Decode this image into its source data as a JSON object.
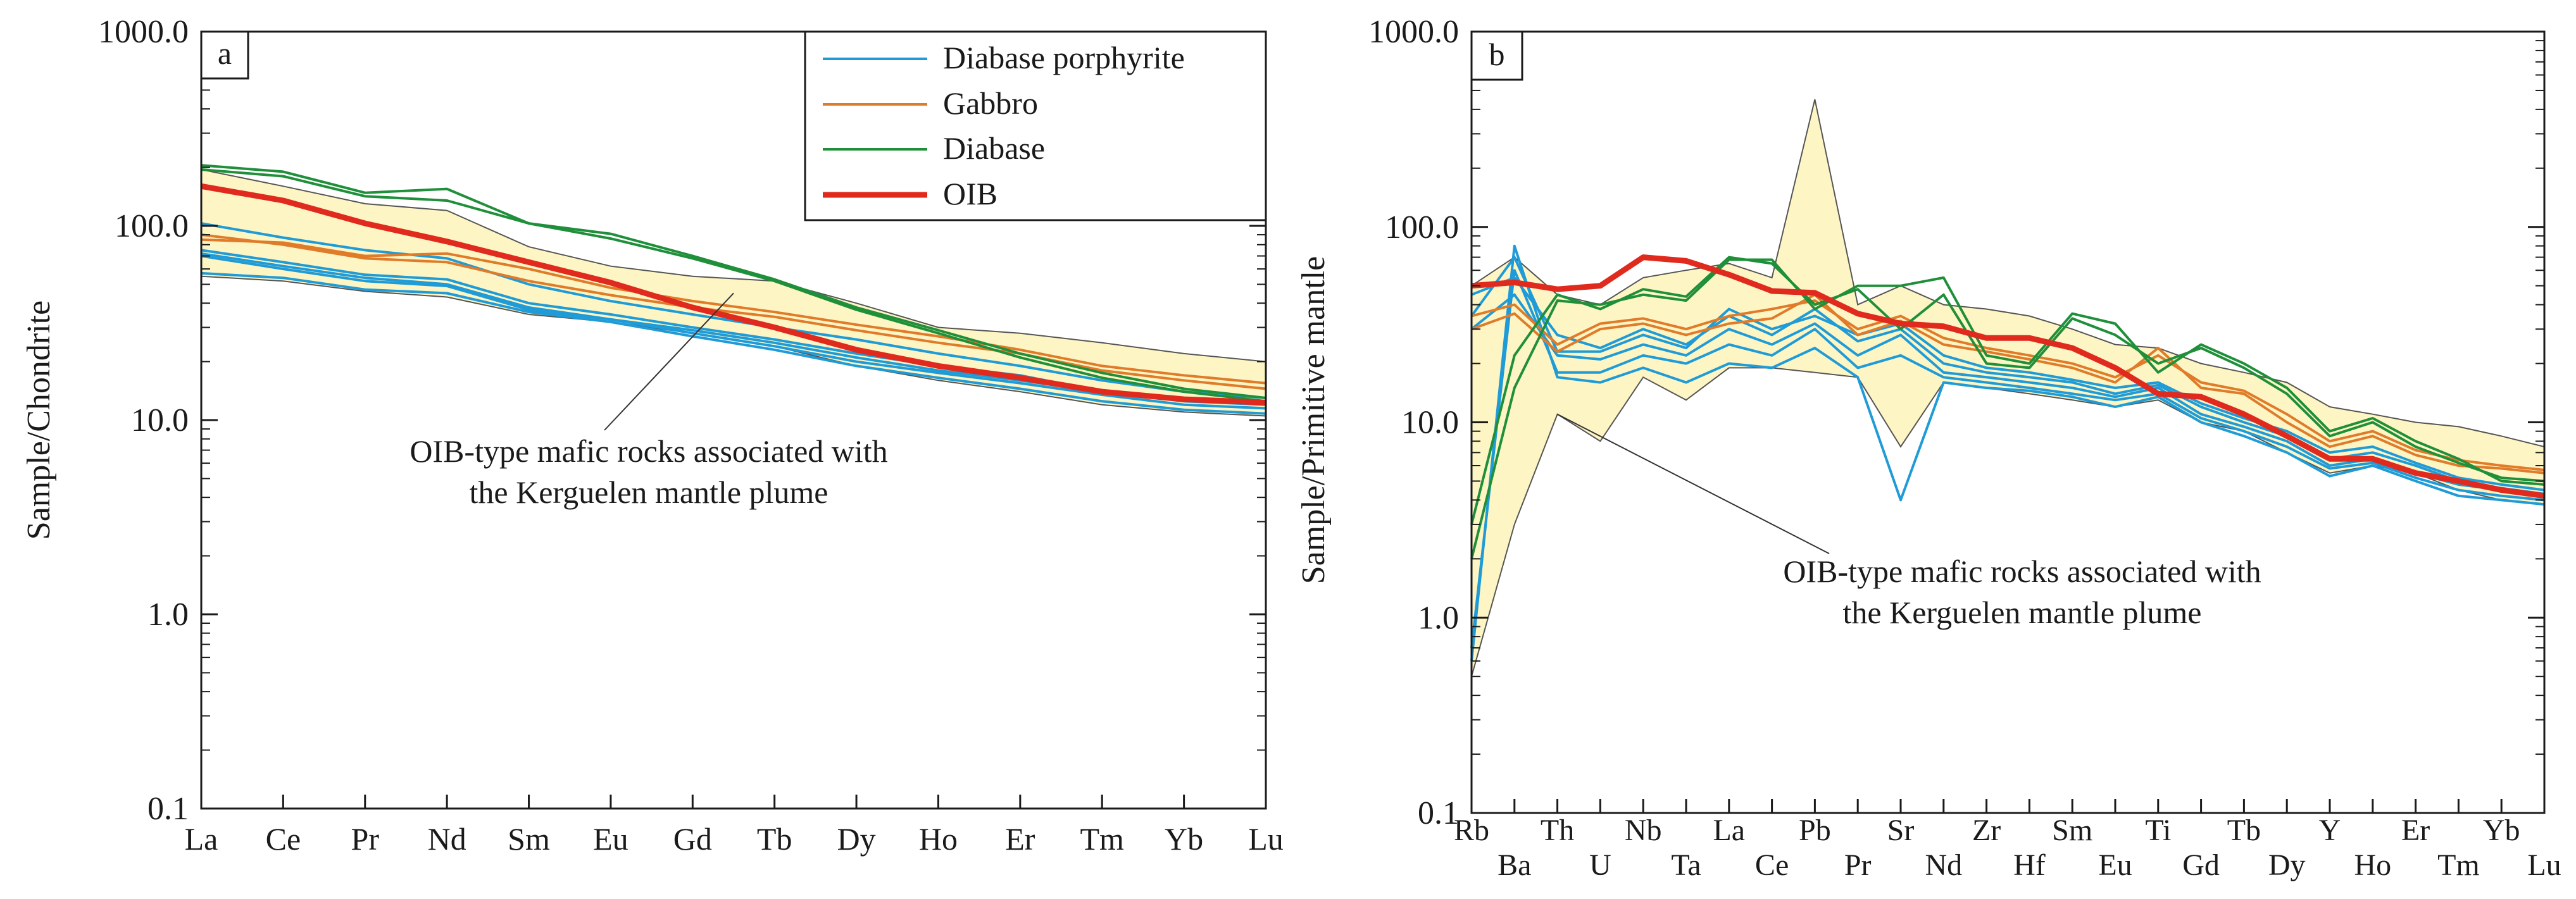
{
  "colors": {
    "diabase_porphyrite": "#1f9bd7",
    "gabbro": "#e07b2a",
    "diabase": "#1f8f3a",
    "oib": "#e02a1e",
    "field_fill": "#fdf5c4",
    "field_stroke": "#555555",
    "axis": "#1a1a1a"
  },
  "chart_data": [
    {
      "type": "line",
      "panel_label": "a",
      "ylabel": "Sample/Chondrite",
      "yscale": "log",
      "ylim": [
        0.1,
        1000
      ],
      "ytick_labels": [
        "0.1",
        "1.0",
        "10.0",
        "100.0",
        "1000.0"
      ],
      "categories": [
        "La",
        "Ce",
        "Pr",
        "Nd",
        "Sm",
        "Eu",
        "Gd",
        "Tb",
        "Dy",
        "Ho",
        "Er",
        "Tm",
        "Yb",
        "Lu"
      ],
      "legend": [
        {
          "label": "Diabase porphyrite",
          "color_key": "diabase_porphyrite"
        },
        {
          "label": "Gabbro",
          "color_key": "gabbro"
        },
        {
          "label": "Diabase",
          "color_key": "diabase"
        },
        {
          "label": "OIB",
          "color_key": "oib"
        }
      ],
      "annotation": {
        "line1": "OIB-type mafic rocks associated with",
        "line2": "the Kerguelen mantle plume",
        "pointer_category": 6.5,
        "pointer_value": 45
      },
      "field": {
        "upper": [
          195,
          160,
          130,
          120,
          78,
          62,
          55,
          52,
          40,
          30,
          28,
          25,
          22,
          20
        ],
        "lower": [
          55,
          52,
          46,
          43,
          35,
          32,
          28,
          24,
          19,
          16,
          14,
          12,
          11,
          10.5
        ]
      },
      "series": [
        {
          "name": "Diabase porphyrite",
          "group": "diabase_porphyrite",
          "values": [
            103,
            87,
            75,
            68,
            50,
            41,
            35,
            30,
            26,
            22,
            19,
            16,
            14,
            13
          ]
        },
        {
          "name": "Diabase porphyrite",
          "group": "diabase_porphyrite",
          "values": [
            75,
            65,
            56,
            53,
            40,
            35,
            30,
            26,
            22,
            19,
            17,
            14,
            13,
            12
          ]
        },
        {
          "name": "Diabase porphyrite",
          "group": "diabase_porphyrite",
          "values": [
            72,
            62,
            54,
            50,
            38,
            33,
            29,
            25,
            21,
            18,
            16,
            14,
            12.5,
            12
          ]
        },
        {
          "name": "Diabase porphyrite",
          "group": "diabase_porphyrite",
          "values": [
            70,
            60,
            52,
            49,
            37,
            33,
            28,
            24,
            20,
            17.5,
            15.5,
            13.5,
            12,
            11.5
          ]
        },
        {
          "name": "Diabase porphyrite",
          "group": "diabase_porphyrite",
          "values": [
            57,
            54,
            47,
            45,
            36,
            32,
            27,
            23,
            19,
            16.5,
            14.5,
            12.5,
            11.3,
            10.8
          ]
        },
        {
          "name": "Gabbro",
          "group": "gabbro",
          "values": [
            85,
            82,
            70,
            72,
            60,
            48,
            41,
            36,
            31,
            27,
            23,
            19,
            17,
            15.5
          ]
        },
        {
          "name": "Gabbro",
          "group": "gabbro",
          "values": [
            90,
            80,
            68,
            65,
            52,
            44,
            38,
            34,
            29,
            25,
            22,
            18,
            16,
            14.5
          ]
        },
        {
          "name": "Diabase",
          "group": "diabase",
          "values": [
            205,
            190,
            148,
            155,
            103,
            91,
            70,
            53,
            38,
            29,
            22,
            17.5,
            14.5,
            13
          ]
        },
        {
          "name": "Diabase",
          "group": "diabase",
          "values": [
            195,
            180,
            142,
            135,
            103,
            86,
            68,
            52,
            37,
            28,
            21,
            16.5,
            14,
            12.5
          ]
        },
        {
          "name": "OIB",
          "group": "oib",
          "values": [
            160,
            135,
            103,
            83,
            65,
            51,
            38,
            30,
            23,
            19,
            16.5,
            14,
            12.8,
            12.3
          ]
        }
      ]
    },
    {
      "type": "line",
      "panel_label": "b",
      "ylabel": "Sample/Primitive mantle",
      "yscale": "log",
      "ylim": [
        0.1,
        1000
      ],
      "ytick_labels": [
        "0.1",
        "1.0",
        "10.0",
        "100.0",
        "1000.0"
      ],
      "categories": [
        "Rb",
        "Ba",
        "Th",
        "U",
        "Nb",
        "Ta",
        "La",
        "Ce",
        "Pb",
        "Pr",
        "Sr",
        "Nd",
        "Zr",
        "Hf",
        "Sm",
        "Eu",
        "Ti",
        "Gd",
        "Tb",
        "Dy",
        "Y",
        "Ho",
        "Er",
        "Tm",
        "Yb",
        "Lu"
      ],
      "annotation": {
        "line1": "OIB-type mafic rocks associated with",
        "line2": "the Kerguelen mantle plume",
        "pointer_category": 2,
        "pointer_value": 11
      },
      "field": {
        "upper": [
          50,
          70,
          45,
          40,
          55,
          60,
          65,
          55,
          450,
          40,
          50,
          40,
          38,
          35,
          30,
          25,
          24,
          20,
          18,
          16,
          12,
          11,
          10,
          9.5,
          8.5,
          7.5
        ],
        "lower": [
          0.5,
          3,
          11,
          8,
          17,
          13,
          19,
          19,
          18,
          17,
          7.5,
          16,
          15,
          14,
          13,
          12,
          13,
          10,
          9,
          7,
          5.5,
          6,
          5.5,
          4.5,
          4,
          3.8
        ]
      },
      "series": [
        {
          "name": "Diabase porphyrite",
          "group": "diabase_porphyrite",
          "values": [
            0.6,
            80,
            17,
            16,
            19,
            16,
            20,
            19,
            24,
            17,
            4,
            16,
            15,
            14.5,
            13.5,
            12,
            13.5,
            10,
            8.5,
            7,
            5.3,
            6,
            5,
            4.2,
            4,
            3.8
          ]
        },
        {
          "name": "Diabase porphyrite",
          "group": "diabase_porphyrite",
          "values": [
            0.7,
            60,
            18,
            18,
            22,
            20,
            25,
            22,
            30,
            19,
            22,
            17,
            16,
            15,
            14,
            13,
            14,
            10.5,
            9,
            7.5,
            5.8,
            6.2,
            5.2,
            4.5,
            4.2,
            4
          ]
        },
        {
          "name": "Diabase porphyrite",
          "group": "diabase_porphyrite",
          "values": [
            30,
            45,
            22,
            21,
            25,
            22,
            30,
            25,
            32,
            22,
            28,
            18,
            17,
            16,
            15,
            13.5,
            15,
            11,
            9.5,
            8,
            6,
            6.5,
            5.5,
            4.8,
            4.5,
            4.2
          ]
        },
        {
          "name": "Diabase porphyrite",
          "group": "diabase_porphyrite",
          "values": [
            45,
            55,
            28,
            24,
            30,
            25,
            35,
            28,
            38,
            26,
            30,
            20,
            18,
            17,
            16,
            14,
            15.5,
            12,
            10,
            8.5,
            6.5,
            7,
            6,
            5,
            4.6,
            4.3
          ]
        },
        {
          "name": "Diabase porphyrite",
          "group": "diabase_porphyrite",
          "values": [
            35,
            70,
            23,
            23,
            28,
            24,
            38,
            30,
            35,
            28,
            32,
            22,
            19,
            18,
            16.5,
            15,
            16,
            12.5,
            10.5,
            9,
            7,
            7.5,
            6.2,
            5.2,
            4.8,
            4.5
          ]
        },
        {
          "name": "Gabbro",
          "group": "gabbro",
          "values": [
            30,
            36,
            23,
            30,
            32,
            28,
            32,
            34,
            45,
            28,
            33,
            25,
            23,
            21,
            19,
            16,
            24,
            15,
            14,
            10,
            7.5,
            8.5,
            6.8,
            6,
            5.8,
            5.5
          ]
        },
        {
          "name": "Gabbro",
          "group": "gabbro",
          "values": [
            35,
            40,
            25,
            32,
            34,
            30,
            35,
            38,
            42,
            30,
            35,
            27,
            24,
            22,
            20,
            17,
            22,
            16,
            14.5,
            11,
            8,
            9,
            7.2,
            6.4,
            6,
            5.7
          ]
        },
        {
          "name": "Diabase",
          "group": "diabase",
          "values": [
            2,
            15,
            42,
            40,
            45,
            42,
            68,
            68,
            38,
            50,
            50,
            55,
            22,
            20,
            36,
            32,
            18,
            25,
            20,
            15,
            9,
            10.5,
            8,
            6.5,
            5,
            4.8
          ]
        },
        {
          "name": "Diabase",
          "group": "diabase",
          "values": [
            3,
            22,
            45,
            38,
            48,
            44,
            70,
            65,
            40,
            48,
            30,
            45,
            20,
            19,
            34,
            28,
            20,
            24,
            19,
            14,
            8.5,
            10,
            7.5,
            6.2,
            5.2,
            5
          ]
        },
        {
          "name": "OIB",
          "group": "oib",
          "values": [
            50,
            52,
            48,
            50,
            70,
            67,
            57,
            47,
            46,
            36,
            32,
            31,
            27,
            27,
            24,
            19,
            14,
            13.5,
            11,
            8.5,
            6.5,
            6.5,
            5.5,
            5,
            4.5,
            4.2
          ]
        }
      ]
    }
  ]
}
